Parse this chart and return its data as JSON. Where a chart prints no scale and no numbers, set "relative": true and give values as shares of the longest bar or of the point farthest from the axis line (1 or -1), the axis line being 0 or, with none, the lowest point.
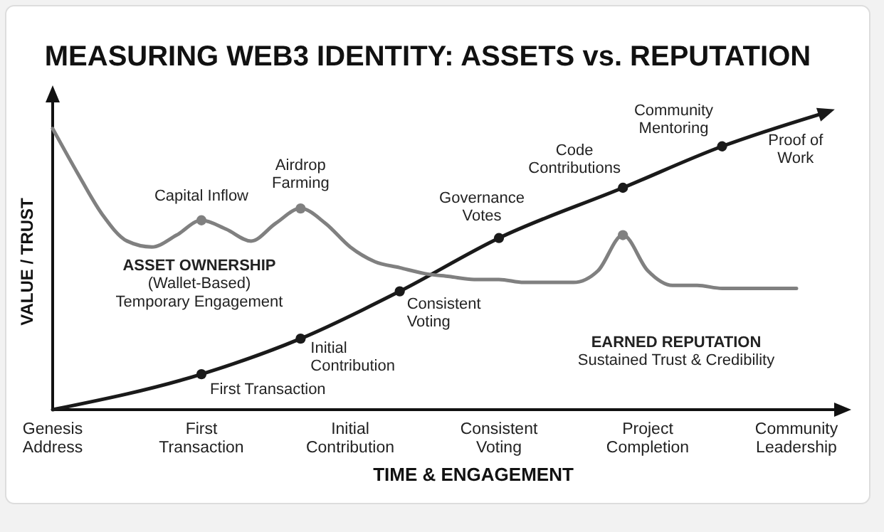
{
  "chart_data": {
    "type": "line",
    "title": "MEASURING WEB3 IDENTITY: ASSETS vs. REPUTATION",
    "xlabel": "TIME & ENGAGEMENT",
    "ylabel": "VALUE / TRUST",
    "relative": true,
    "categories": [
      "Genesis\nAddress",
      null,
      null,
      null,
      null,
      null,
      "First\nTransaction",
      null,
      null,
      null,
      null,
      null,
      "Initial\nContribution",
      null,
      null,
      null,
      null,
      null,
      "Consistent\nVoting",
      null,
      null,
      null,
      null,
      null,
      "Project\nCompletion",
      null,
      null,
      null,
      null,
      null,
      "Community\nLeadership",
      null
    ],
    "series": [
      {
        "color": "#1a1a1a",
        "values": [
          0,
          null,
          null,
          null,
          null,
          null,
          0.12,
          null,
          null,
          null,
          0.24,
          null,
          null,
          null,
          0.4,
          null,
          null,
          null,
          0.58,
          null,
          null,
          null,
          null,
          0.75,
          null,
          null,
          null,
          0.89,
          null,
          null,
          null,
          1.0
        ]
      },
      {
        "color": "#808080",
        "values": [
          0.95,
          0.8,
          0.66,
          0.57,
          0.55,
          0.59,
          0.64,
          0.61,
          0.57,
          0.63,
          0.68,
          0.63,
          0.55,
          0.5,
          0.48,
          0.46,
          0.45,
          0.44,
          0.44,
          0.43,
          0.43,
          0.43,
          0.47,
          0.59,
          0.47,
          0.42,
          0.42,
          0.41,
          0.41,
          0.41,
          0.41,
          null
        ]
      },
      {
        "type": "scatter",
        "color": "#1a1a1a",
        "marker": "circle",
        "values": [
          null,
          null,
          null,
          null,
          null,
          null,
          0.12,
          null,
          null,
          null,
          0.24,
          null,
          null,
          null,
          0.4,
          null,
          null,
          null,
          0.58,
          null,
          null,
          null,
          null,
          0.75,
          null,
          null,
          null,
          0.89,
          null,
          null,
          null,
          null
        ]
      },
      {
        "type": "scatter",
        "color": "#808080",
        "marker": "circle",
        "values": [
          null,
          null,
          null,
          null,
          null,
          null,
          0.64,
          null,
          null,
          null,
          0.68,
          null,
          null,
          null,
          null,
          null,
          null,
          null,
          null,
          null,
          null,
          null,
          null,
          0.59,
          null,
          null,
          null,
          null,
          null,
          null,
          null,
          null
        ]
      }
    ],
    "annotations": [
      "Capital Inflow",
      "Airdrop\nFarming",
      "First Transaction",
      "Initial\nContribution",
      "Consistent\nVoting",
      "Governance\nVotes",
      "Code\nContributions",
      "Community\nMentoring",
      "Proof of\nWork",
      "ASSET OWNERSHIP\n(Wallet-Based)\nTemporary Engagement",
      "EARNED REPUTATION\nSustained Trust & Credibility"
    ]
  }
}
